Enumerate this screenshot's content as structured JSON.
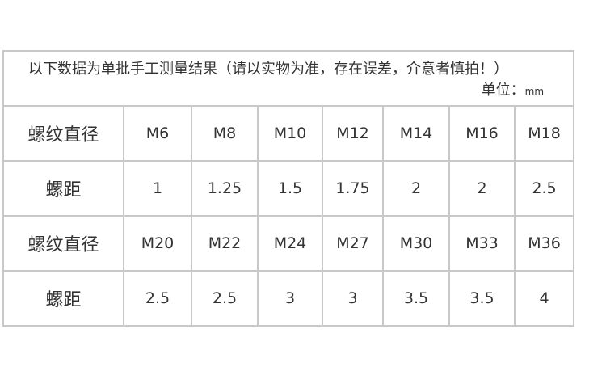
{
  "header": {
    "note": "以下数据为单批手工测量结果（请以实物为准，存在误差，介意者慎拍！）",
    "unit_label": "单位：",
    "unit": "mm"
  },
  "rows": [
    {
      "label": "螺纹直径",
      "values": [
        "M6",
        "M8",
        "M10",
        "M12",
        "M14",
        "M16",
        "M18"
      ]
    },
    {
      "label": "螺距",
      "values": [
        "1",
        "1.25",
        "1.5",
        "1.75",
        "2",
        "2",
        "2.5"
      ]
    },
    {
      "label": "螺纹直径",
      "values": [
        "M20",
        "M22",
        "M24",
        "M27",
        "M30",
        "M33",
        "M36"
      ]
    },
    {
      "label": "螺距",
      "values": [
        "2.5",
        "2.5",
        "3",
        "3",
        "3.5",
        "3.5",
        "4"
      ]
    }
  ]
}
